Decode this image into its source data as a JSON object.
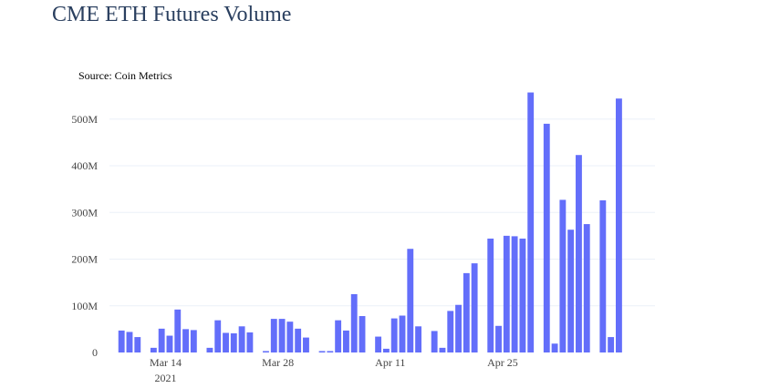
{
  "page": {
    "title": "CME ETH Futures Volume"
  },
  "chart_data": {
    "type": "bar",
    "title": "CME ETH Futures Volume",
    "annotation": "Source: Coin Metrics",
    "xlabel": "",
    "ylabel": "",
    "ylim": [
      0,
      560000000
    ],
    "grid": true,
    "bar_color": "#636efa",
    "y_ticks": [
      {
        "value": 0,
        "label": "0"
      },
      {
        "value": 100000000,
        "label": "100M"
      },
      {
        "value": 200000000,
        "label": "200M"
      },
      {
        "value": 300000000,
        "label": "300M"
      },
      {
        "value": 400000000,
        "label": "400M"
      },
      {
        "value": 500000000,
        "label": "500M"
      }
    ],
    "x_ticks": [
      {
        "date": "2021-03-14",
        "label": "Mar 14",
        "sublabel": "2021"
      },
      {
        "date": "2021-03-28",
        "label": "Mar 28",
        "sublabel": ""
      },
      {
        "date": "2021-04-11",
        "label": "Apr 11",
        "sublabel": ""
      },
      {
        "date": "2021-04-25",
        "label": "Apr 25",
        "sublabel": ""
      }
    ],
    "x": [
      "2021-03-08",
      "2021-03-09",
      "2021-03-10",
      "2021-03-12",
      "2021-03-13",
      "2021-03-14",
      "2021-03-15",
      "2021-03-16",
      "2021-03-17",
      "2021-03-19",
      "2021-03-20",
      "2021-03-21",
      "2021-03-22",
      "2021-03-23",
      "2021-03-24",
      "2021-03-26",
      "2021-03-27",
      "2021-03-28",
      "2021-03-29",
      "2021-03-30",
      "2021-03-31",
      "2021-04-02",
      "2021-04-03",
      "2021-04-04",
      "2021-04-05",
      "2021-04-06",
      "2021-04-07",
      "2021-04-09",
      "2021-04-10",
      "2021-04-11",
      "2021-04-12",
      "2021-04-13",
      "2021-04-14",
      "2021-04-16",
      "2021-04-17",
      "2021-04-18",
      "2021-04-19",
      "2021-04-20",
      "2021-04-21",
      "2021-04-23",
      "2021-04-24",
      "2021-04-25",
      "2021-04-26",
      "2021-04-27",
      "2021-04-28",
      "2021-04-30",
      "2021-05-01",
      "2021-05-02",
      "2021-05-03",
      "2021-05-04",
      "2021-05-05",
      "2021-05-07",
      "2021-05-08",
      "2021-05-09",
      "2021-05-10",
      "2021-05-11",
      "2021-05-12",
      "2021-05-14",
      "2021-05-15"
    ],
    "values": [
      47000000,
      44000000,
      33000000,
      10000000,
      51000000,
      36000000,
      92000000,
      50000000,
      48000000,
      10000000,
      69000000,
      42000000,
      41000000,
      56000000,
      43000000,
      3000000,
      72000000,
      72000000,
      66000000,
      51000000,
      32000000,
      3000000,
      3000000,
      69000000,
      47000000,
      125000000,
      78000000,
      34000000,
      8000000,
      73000000,
      79000000,
      222000000,
      56000000,
      46000000,
      10000000,
      89000000,
      102000000,
      170000000,
      191000000,
      244000000,
      57000000,
      250000000,
      249000000,
      244000000,
      557000000,
      490000000,
      19000000,
      327000000,
      263000000,
      423000000,
      275000000,
      326000000,
      33000000,
      544000000,
      0,
      0,
      0,
      0,
      0
    ]
  }
}
